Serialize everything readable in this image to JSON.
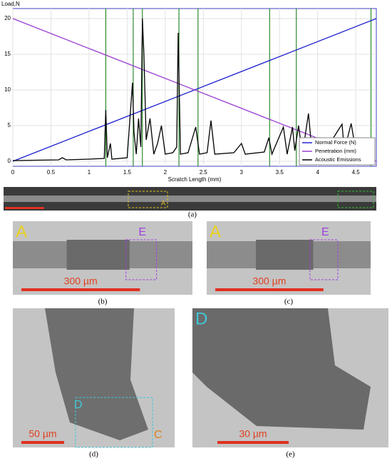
{
  "chart_data": {
    "type": "line",
    "y_label": "Load,N",
    "x_label": "Scratch Length (mm)",
    "xlim": [
      0,
      4.77
    ],
    "ylim": [
      -0.7,
      21.4
    ],
    "xticks": [
      0,
      0.5,
      1,
      1.5,
      2,
      2.5,
      3,
      3.5,
      4,
      4.5
    ],
    "yticks": [
      0,
      5,
      10,
      15,
      20
    ],
    "grid": true,
    "legend": "lower right",
    "markers": [
      1.22,
      1.58,
      1.7,
      2.18,
      2.43,
      3.37,
      3.72,
      4.7
    ],
    "marker_color": "#2e8b2e",
    "series": [
      {
        "name": "Normal Force (N)",
        "color": "#2020d0",
        "x": [
          0,
          4.77
        ],
        "values": [
          0,
          20
        ]
      },
      {
        "name": "Penetration (mm)",
        "color": "#9b3fd0",
        "x": [
          0,
          4.77
        ],
        "values": [
          20,
          0
        ]
      },
      {
        "name": "Acoustic Emissions",
        "color": "#000000",
        "x": [
          0,
          0.6,
          0.65,
          0.7,
          1.0,
          1.2,
          1.22,
          1.24,
          1.28,
          1.3,
          1.5,
          1.57,
          1.59,
          1.62,
          1.65,
          1.68,
          1.7,
          1.72,
          1.75,
          1.8,
          1.85,
          1.9,
          1.95,
          2.0,
          2.1,
          2.15,
          2.17,
          2.2,
          2.3,
          2.4,
          2.45,
          2.55,
          2.6,
          2.65,
          2.9,
          3.0,
          3.05,
          3.3,
          3.36,
          3.4,
          3.55,
          3.6,
          3.67,
          3.7,
          3.75,
          3.8,
          3.88,
          3.92,
          4.1,
          4.32,
          4.35,
          4.44,
          4.5
        ],
        "values": [
          0.1,
          0.2,
          0.5,
          0.2,
          0.3,
          0.4,
          7.2,
          0.5,
          2.5,
          0.3,
          0.5,
          11,
          4,
          1,
          6,
          2,
          20,
          15,
          3,
          6,
          1,
          2.5,
          5,
          1,
          1.2,
          2,
          18,
          1,
          1.2,
          4.8,
          1,
          1.2,
          5.7,
          1,
          1.2,
          2.5,
          1,
          1.3,
          3.3,
          1,
          4.8,
          1,
          4.8,
          1.5,
          5,
          1,
          6.7,
          2,
          1.5,
          5.2,
          1.5,
          5.3,
          1.5
        ]
      }
    ]
  },
  "figure": {
    "caption_a": "(a)",
    "strip_label": "A",
    "panels": [
      {
        "caption": "(b)",
        "labels": [
          "A",
          "E"
        ],
        "scale": "300 µm"
      },
      {
        "caption": "(c)",
        "labels": [
          "A",
          "E"
        ],
        "scale": "300 µm"
      },
      {
        "caption": "(d)",
        "labels": [
          "D",
          "C"
        ],
        "scale": "50 µm"
      },
      {
        "caption": "(e)",
        "labels": [
          "D"
        ],
        "scale": "30 µm"
      }
    ]
  }
}
